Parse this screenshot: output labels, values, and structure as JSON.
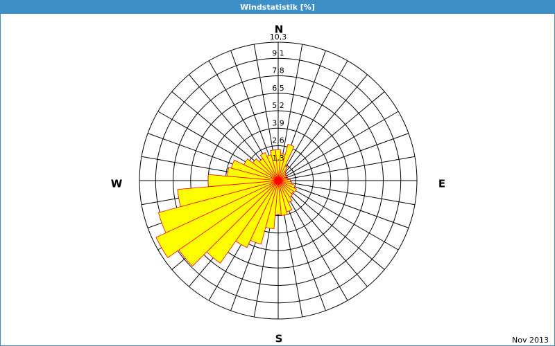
{
  "chart_data": {
    "type": "windrose",
    "title": "Windstatistik [%]",
    "footer": "Nov 2013",
    "directions": [
      "N",
      "E",
      "S",
      "W"
    ],
    "x": [
      0,
      10,
      20,
      30,
      40,
      50,
      60,
      70,
      80,
      90,
      100,
      110,
      120,
      130,
      140,
      150,
      160,
      170,
      180,
      190,
      200,
      210,
      220,
      230,
      240,
      250,
      260,
      270,
      280,
      290,
      300,
      310,
      320,
      330,
      340,
      350
    ],
    "values": [
      2.3,
      2.0,
      2.8,
      1.2,
      0.8,
      0.7,
      0.7,
      0.6,
      0.7,
      0.9,
      1.0,
      1.3,
      1.5,
      1.4,
      1.5,
      1.8,
      2.4,
      2.6,
      2.5,
      3.6,
      4.9,
      5.5,
      7.5,
      9.0,
      10.0,
      9.2,
      7.5,
      5.2,
      3.8,
      3.6,
      2.8,
      2.3,
      2.0,
      2.3,
      2.0,
      2.3
    ],
    "color": "#ffff00",
    "edge_color": "#ff0000",
    "rlim": [
      0,
      10.3
    ],
    "rticks": [
      {
        "value": 1.3,
        "label": "1,3"
      },
      {
        "value": 2.6,
        "label": "2,6"
      },
      {
        "value": 3.9,
        "label": "3,9"
      },
      {
        "value": 5.2,
        "label": "5,2"
      },
      {
        "value": 6.5,
        "label": "6,5"
      },
      {
        "value": 7.8,
        "label": "7,8"
      },
      {
        "value": 9.1,
        "label": "9,1"
      },
      {
        "value": 10.3,
        "label": "10,3"
      }
    ]
  }
}
